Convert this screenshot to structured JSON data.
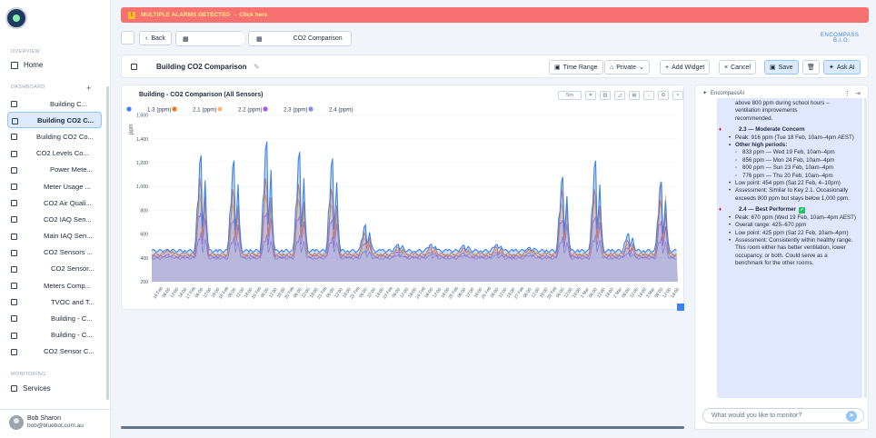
{
  "sidebar": {
    "section_overview": "OVERVIEW",
    "home_label": "Home",
    "section_dashboards": "DASHBOARD",
    "add_label": "+",
    "items": [
      {
        "label": "Building C...",
        "indent": 47
      },
      {
        "label": "Building CO2 C...",
        "indent": 32,
        "active": true
      },
      {
        "label": "Building CO2 Co...",
        "indent": 32
      },
      {
        "label": "CO2 Levels Co...",
        "indent": 32
      },
      {
        "label": "Power Mete...",
        "indent": 47
      },
      {
        "label": "Meter Usage ...",
        "indent": 40
      },
      {
        "label": "CO2 Air Quali...",
        "indent": 40
      },
      {
        "label": "CO2 IAQ Sen...",
        "indent": 40
      },
      {
        "label": "Main IAQ Sen...",
        "indent": 40
      },
      {
        "label": "CO2 Sensors ...",
        "indent": 40
      },
      {
        "label": "CO2 Sensor...",
        "indent": 48
      },
      {
        "label": "Meters Comp...",
        "indent": 40
      },
      {
        "label": "TVOC and T...",
        "indent": 48
      },
      {
        "label": "Building - C...",
        "indent": 48
      },
      {
        "label": "Building - C...",
        "indent": 48
      },
      {
        "label": "CO2 Sensor C...",
        "indent": 40
      }
    ],
    "section_monitoring": "MONITORING",
    "services_label": "Services",
    "user": {
      "name": "Bob Sharon",
      "email": "bob@bluebot.com.au"
    }
  },
  "alarm": {
    "text": "MULTIPLE ALARMS DETECTED → Click here"
  },
  "nav": {
    "back_label": "Back",
    "crumb1": "",
    "crumb2": "CO2 Comparison",
    "brand_line1": "ENCOMPASS",
    "brand_line2": "B.I.O."
  },
  "dashboard": {
    "title": "Building CO2 Comparison",
    "buttons": {
      "time_range": "Time Range",
      "private": "Private",
      "add_widget": "Add Widget",
      "cancel": "Cancel",
      "save": "Save",
      "ask_ai": "Ask AI"
    }
  },
  "chart": {
    "title": "Building - CO2 Comparison (All Sensors)",
    "range_button": "5m",
    "accent": "#3b82f6"
  },
  "chart_data": {
    "type": "line",
    "title": "Building - CO2 Comparison (All Sensors)",
    "ylabel": "ppm",
    "ylim": [
      200,
      1650
    ],
    "yticks": [
      200,
      400,
      600,
      800,
      1000,
      1200,
      1400,
      1600
    ],
    "ytick_labels": [
      "200",
      "400",
      "600",
      "800",
      "1,000",
      "1,200",
      "1,400",
      "1,600"
    ],
    "legend": [
      {
        "name": "1.3 (ppm)",
        "color": "#3b82f6"
      },
      {
        "name": "2.1 (ppm)",
        "color": "#f97316"
      },
      {
        "name": "2.2 (ppm)",
        "color": "#fdba74"
      },
      {
        "name": "2.3 (ppm)",
        "color": "#a855f7"
      },
      {
        "name": "2.4 (ppm)",
        "color": "#818cf8"
      }
    ],
    "xtick_labels": [
      "16 Feb",
      "06:00",
      "12:00",
      "18:00",
      "17 Feb",
      "06:00",
      "12:00",
      "18:00",
      "18 Feb",
      "06:00",
      "12:00",
      "18:00",
      "19 Feb",
      "06:00",
      "12:00",
      "18:00",
      "20 Feb",
      "06:00",
      "12:00",
      "18:00",
      "21 Feb",
      "06:00",
      "12:00",
      "18:00",
      "22 Feb",
      "06:00",
      "12:00",
      "18:00",
      "23 Feb",
      "06:00",
      "12:00",
      "18:00",
      "24 Feb",
      "06:00",
      "12:00",
      "18:00",
      "25 Feb",
      "06:00",
      "12:00",
      "18:00",
      "26 Feb",
      "06:00",
      "12:00",
      "18:00",
      "27 Feb",
      "06:00",
      "12:00",
      "18:00",
      "28 Feb",
      "06:00",
      "12:00",
      "18:00",
      "1 Mar",
      "06:00",
      "12:00",
      "18:00",
      "2 Mar",
      "06:00",
      "12:00",
      "18:00",
      "3 Mar",
      "06:00",
      "12:00",
      "18:00"
    ],
    "x_days": [
      "16 Feb",
      "17 Feb",
      "18 Feb",
      "19 Feb",
      "20 Feb",
      "21 Feb",
      "22 Feb",
      "23 Feb",
      "24 Feb",
      "25 Feb",
      "26 Feb",
      "27 Feb",
      "28 Feb",
      "1 Mar",
      "2 Mar",
      "3 Mar"
    ],
    "series": [
      {
        "name": "1.3 (ppm)",
        "daily_peak": [
          470,
          1350,
          1300,
          1480,
          1380,
          1320,
          700,
          520,
          520,
          510,
          520,
          490,
          1150,
          1300,
          620,
          1100
        ],
        "baseline": 460
      },
      {
        "name": "2.1 (ppm)",
        "daily_peak": [
          470,
          1150,
          1050,
          1150,
          1100,
          1050,
          640,
          500,
          500,
          490,
          500,
          480,
          1050,
          1050,
          560,
          950
        ],
        "baseline": 430
      },
      {
        "name": "2.2 (ppm)",
        "daily_peak": [
          460,
          1050,
          950,
          1050,
          1000,
          950,
          600,
          480,
          480,
          470,
          480,
          470,
          950,
          1000,
          540,
          1180
        ],
        "baseline": 420
      },
      {
        "name": "2.3 (ppm)",
        "daily_peak": [
          430,
          900,
          820,
          900,
          860,
          820,
          560,
          460,
          460,
          450,
          460,
          450,
          820,
          850,
          510,
          800
        ],
        "baseline": 410
      },
      {
        "name": "2.4 (ppm)",
        "daily_peak": [
          410,
          640,
          600,
          620,
          610,
          600,
          470,
          430,
          430,
          425,
          430,
          425,
          600,
          620,
          450,
          600
        ],
        "baseline": 400
      }
    ]
  },
  "ai": {
    "title": "EncompassAI",
    "lines": [
      {
        "t": "above 800 ppm during school hours –",
        "cls": ""
      },
      {
        "t": "ventilation improvements",
        "cls": ""
      },
      {
        "t": "recommended.",
        "cls": ""
      },
      {
        "t": "2.3 — Moderate Concern",
        "cls": "h"
      },
      {
        "t": "Peak: 916 ppm (Tue 18 Feb, 10am–4pm AEST)",
        "cls": "bullet"
      },
      {
        "t": "Other high periods:",
        "cls": "bullet b"
      },
      {
        "t": "833 ppm — Wed 19 Feb, 10am–4pm",
        "cls": "sub"
      },
      {
        "t": "856 ppm — Mon 24 Feb, 10am–4pm",
        "cls": "sub"
      },
      {
        "t": "800 ppm — Sun 23 Feb, 10am–4pm",
        "cls": "sub"
      },
      {
        "t": "776 ppm — Thu 20 Feb, 10am–4pm",
        "cls": "sub"
      },
      {
        "t": "Low point: 454 ppm (Sat 22 Feb, 4–10pm)",
        "cls": "bullet"
      },
      {
        "t": "Assessment: Similar to Key 2.1. Occasionally exceeds 800 ppm but stays below 1,000 ppm.",
        "cls": "bullet"
      },
      {
        "t": "2.4 — Best Performer",
        "cls": "h"
      },
      {
        "t": "Peak: 670 ppm (Wed 19 Feb, 10am–4pm AEST)",
        "cls": "bullet"
      },
      {
        "t": "Overall range: 425–670 ppm",
        "cls": "bullet"
      },
      {
        "t": "Low point: 425 ppm (Sat 22 Feb, 10am–4pm)",
        "cls": "bullet"
      },
      {
        "t": "Assessment: Consistently within healthy range. This room either has better ventilation, lower occupancy, or both. Could serve as a benchmark for the other rooms.",
        "cls": "bullet"
      }
    ],
    "input_placeholder": "What would you like to monitor?"
  }
}
